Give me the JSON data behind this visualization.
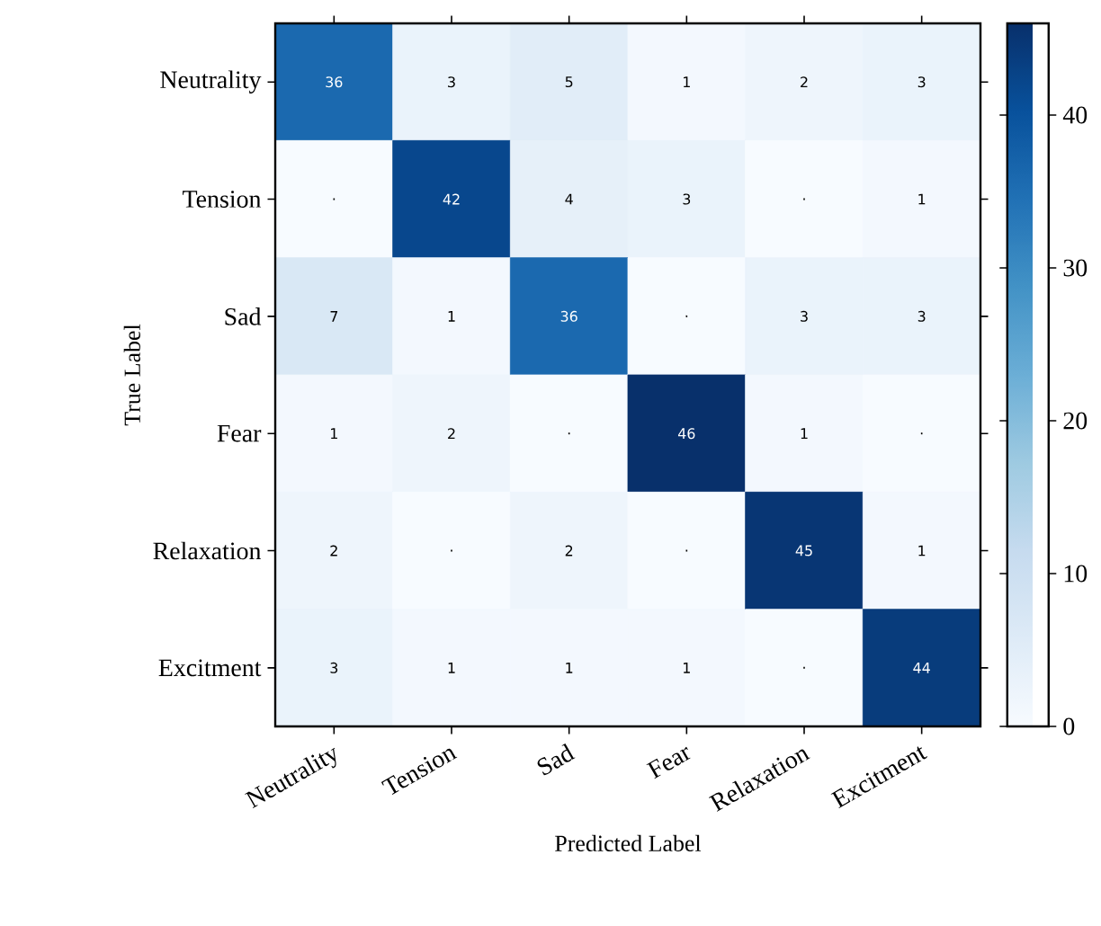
{
  "chart_data": {
    "type": "heatmap",
    "xlabel": "Predicted Label",
    "ylabel": "True Label",
    "categories": [
      "Neutrality",
      "Tension",
      "Sad",
      "Fear",
      "Relaxation",
      "Excitment"
    ],
    "y_categories": [
      "Neutrality",
      "Tension",
      "Sad",
      "Fear",
      "Relaxation",
      "Excitment"
    ],
    "cells": [
      [
        36,
        3,
        5,
        1,
        2,
        3
      ],
      [
        0,
        42,
        4,
        3,
        0,
        1
      ],
      [
        7,
        1,
        36,
        0,
        3,
        3
      ],
      [
        1,
        2,
        0,
        46,
        1,
        0
      ],
      [
        2,
        0,
        2,
        0,
        45,
        1
      ],
      [
        3,
        1,
        1,
        1,
        0,
        44
      ]
    ],
    "cell_labels": [
      [
        "36",
        "3",
        "5",
        "1",
        "2",
        "3"
      ],
      [
        ".",
        "42",
        "4",
        "3",
        ".",
        "1"
      ],
      [
        "7",
        "1",
        "36",
        ".",
        "3",
        "3"
      ],
      [
        "1",
        "2",
        ".",
        "46",
        "1",
        "."
      ],
      [
        "2",
        ".",
        "2",
        ".",
        "45",
        "1"
      ],
      [
        "3",
        "1",
        "1",
        "1",
        ".",
        "44"
      ]
    ],
    "clim": [
      0,
      46
    ],
    "cticks": [
      0,
      10,
      20,
      30,
      40
    ]
  }
}
